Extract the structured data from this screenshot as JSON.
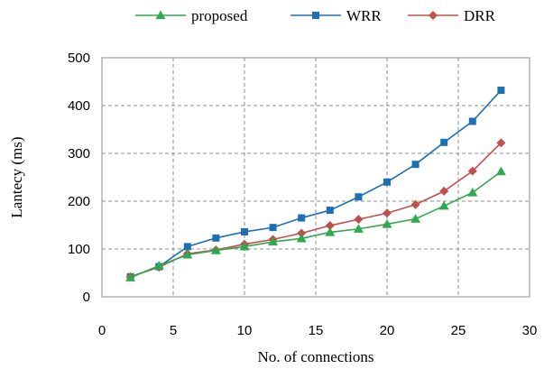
{
  "chart_data": {
    "type": "line",
    "title": "",
    "xlabel": "No. of connections",
    "ylabel": "Lantecy (ms)",
    "xlim": [
      0,
      30
    ],
    "ylim": [
      0,
      500
    ],
    "xticks": [
      0,
      5,
      10,
      15,
      20,
      25,
      30
    ],
    "yticks": [
      0,
      100,
      200,
      300,
      400,
      500
    ],
    "grid": true,
    "legend_position": "top",
    "x": [
      2,
      4,
      6,
      8,
      10,
      12,
      14,
      16,
      18,
      20,
      22,
      24,
      26,
      28
    ],
    "series": [
      {
        "name": "proposed",
        "color": "#2fa84f",
        "marker": "triangle",
        "values": [
          40,
          65,
          88,
          97,
          105,
          115,
          122,
          135,
          142,
          152,
          163,
          190,
          218,
          262
        ]
      },
      {
        "name": "WRR",
        "color": "#1f6fb4",
        "marker": "square",
        "values": [
          42,
          63,
          105,
          123,
          136,
          145,
          165,
          181,
          209,
          240,
          277,
          323,
          367,
          432
        ]
      },
      {
        "name": "DRR",
        "color": "#c0504d",
        "marker": "diamond",
        "values": [
          42,
          62,
          90,
          98,
          110,
          120,
          133,
          149,
          162,
          175,
          193,
          221,
          263,
          322
        ]
      }
    ]
  }
}
